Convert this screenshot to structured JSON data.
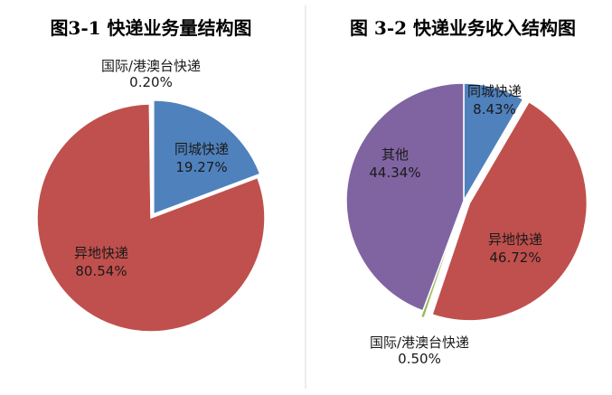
{
  "chart_data": [
    {
      "type": "pie",
      "title": "图3-1  快递业务量结构图",
      "slices": [
        {
          "label": "同城快递",
          "value": 19.27,
          "value_text": "19.27%",
          "color": "#4f81bd",
          "exploded": true
        },
        {
          "label": "异地快递",
          "value": 80.54,
          "value_text": "80.54%",
          "color": "#c0504d",
          "exploded": false
        },
        {
          "label": "国际/港澳台快递",
          "value": 0.2,
          "value_text": "0.20%",
          "color": "#9bbb59",
          "exploded": true
        }
      ]
    },
    {
      "type": "pie",
      "title": "图 3-2  快递业务收入结构图",
      "slices": [
        {
          "label": "同城快递",
          "value": 8.43,
          "value_text": "8.43%",
          "color": "#4f81bd",
          "exploded": false
        },
        {
          "label": "异地快递",
          "value": 46.72,
          "value_text": "46.72%",
          "color": "#c0504d",
          "exploded": true
        },
        {
          "label": "国际/港澳台快递",
          "value": 0.5,
          "value_text": "0.50%",
          "color": "#9bbb59",
          "exploded": true
        },
        {
          "label": "其他",
          "value": 44.34,
          "value_text": "44.34%",
          "color": "#8064a2",
          "exploded": false
        }
      ]
    }
  ]
}
